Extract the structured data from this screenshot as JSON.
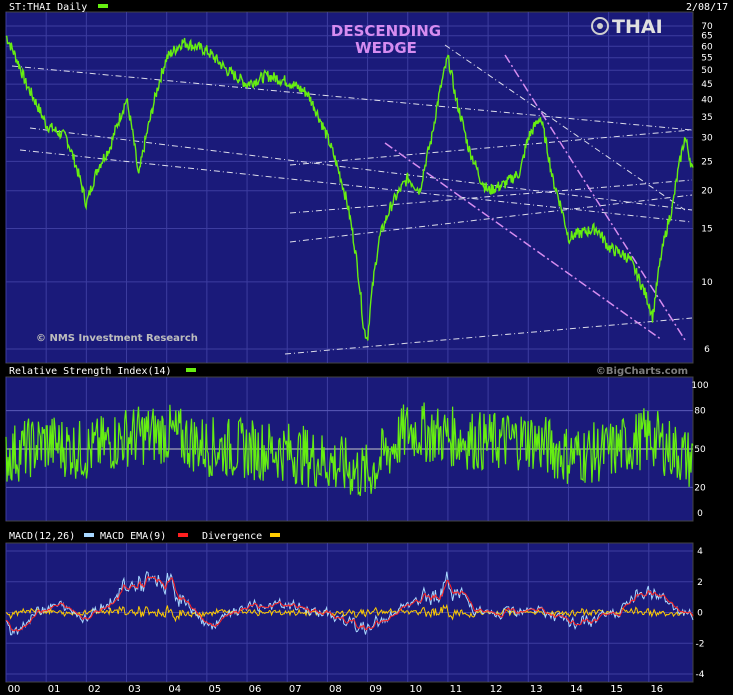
{
  "price_panel": {
    "title": "ST:THAI Daily",
    "date": "2/08/17",
    "brand": "THAI",
    "annotation_line1": "DESCENDING",
    "annotation_line2": "WEDGE",
    "credit": "© NMS Investment Research",
    "yticks": [
      70,
      65,
      60,
      55,
      50,
      45,
      40,
      35,
      30,
      25,
      20,
      15,
      10,
      6
    ],
    "series_color": "#66ee11"
  },
  "rsi_panel": {
    "title": "Relative Strength Index(14)",
    "credit": "©BigCharts.com",
    "yticks": [
      100,
      80,
      50,
      20,
      0
    ],
    "series_color": "#66ee11"
  },
  "macd_panel": {
    "title_macd": "MACD(12,26)",
    "title_ema": "MACD EMA(9)",
    "title_div": "Divergence",
    "yticks": [
      4,
      2,
      0,
      -2,
      -4
    ],
    "macd_color": "#a8d8ff",
    "ema_color": "#ff2020",
    "divergence_color": "#ffcc00"
  },
  "xaxis": {
    "labels": [
      "00",
      "01",
      "02",
      "03",
      "04",
      "05",
      "06",
      "07",
      "08",
      "09",
      "10",
      "11",
      "12",
      "13",
      "14",
      "15",
      "16"
    ]
  },
  "chart_data": [
    {
      "type": "line",
      "title": "ST:THAI Daily",
      "scale": "log",
      "ylim": [
        6,
        70
      ],
      "x": [
        "2000",
        "2000.5",
        "2001",
        "2001.5",
        "2002",
        "2002.3",
        "2002.6",
        "2003",
        "2003.3",
        "2003.6",
        "2004",
        "2004.4",
        "2005",
        "2005.5",
        "2006",
        "2006.5",
        "2007",
        "2007.5",
        "2008",
        "2008.5",
        "2008.9",
        "2009",
        "2009.3",
        "2009.6",
        "2010",
        "2010.3",
        "2010.6",
        "2011",
        "2011.2",
        "2011.5",
        "2011.8",
        "2012",
        "2012.4",
        "2012.8",
        "2013",
        "2013.3",
        "2013.6",
        "2014",
        "2014.3",
        "2014.7",
        "2015",
        "2015.5",
        "2016",
        "2016.1",
        "2016.3",
        "2016.6",
        "2016.9",
        "2017.1"
      ],
      "values": [
        65,
        45,
        33,
        30,
        18,
        24,
        28,
        40,
        22,
        35,
        55,
        62,
        58,
        50,
        45,
        48,
        46,
        42,
        30,
        18,
        7,
        6.5,
        14,
        18,
        22,
        20,
        30,
        55,
        40,
        28,
        22,
        20,
        21,
        23,
        30,
        35,
        22,
        14,
        14.5,
        15,
        13,
        12,
        8.5,
        7.6,
        12,
        18,
        30,
        23
      ],
      "trendlines": "descending wedge"
    },
    {
      "type": "line",
      "title": "Relative Strength Index(14)",
      "ylim": [
        0,
        100
      ],
      "reference_lines": [
        20,
        50,
        80
      ],
      "x": [
        "2000",
        "2001",
        "2002",
        "2003",
        "2004",
        "2005",
        "2006",
        "2007",
        "2008",
        "2009",
        "2010",
        "2011",
        "2012",
        "2013",
        "2014",
        "2015",
        "2016",
        "2017"
      ],
      "values": [
        45,
        55,
        48,
        60,
        62,
        52,
        50,
        48,
        40,
        30,
        65,
        60,
        55,
        58,
        45,
        48,
        60,
        42
      ]
    },
    {
      "type": "line",
      "title": "MACD(12,26)",
      "ylim": [
        -4,
        4
      ],
      "x": [
        "2000",
        "2001",
        "2002",
        "2003",
        "2004",
        "2005",
        "2006",
        "2007",
        "2008",
        "2009",
        "2010",
        "2011",
        "2012",
        "2013",
        "2014",
        "2015",
        "2016",
        "2017"
      ],
      "series": [
        {
          "name": "MACD(12,26)",
          "values": [
            -2,
            0.8,
            -0.4,
            2.2,
            2.4,
            -1.2,
            0.4,
            0.6,
            -0.2,
            -1.4,
            0.6,
            2.2,
            -0.4,
            0.6,
            -1.0,
            -0.3,
            2.0,
            -0.4
          ]
        },
        {
          "name": "MACD EMA(9)",
          "values": [
            -1.6,
            0.6,
            -0.3,
            1.8,
            2.0,
            -1.0,
            0.3,
            0.5,
            -0.2,
            -1.1,
            0.5,
            1.8,
            -0.3,
            0.5,
            -0.8,
            -0.2,
            1.6,
            -0.3
          ]
        },
        {
          "name": "Divergence",
          "values": [
            -0.4,
            0.2,
            -0.1,
            0.4,
            0.4,
            -0.2,
            0.1,
            0.1,
            0.0,
            -0.3,
            0.1,
            0.4,
            -0.1,
            0.1,
            -0.2,
            -0.1,
            0.4,
            -0.1
          ]
        }
      ]
    }
  ]
}
